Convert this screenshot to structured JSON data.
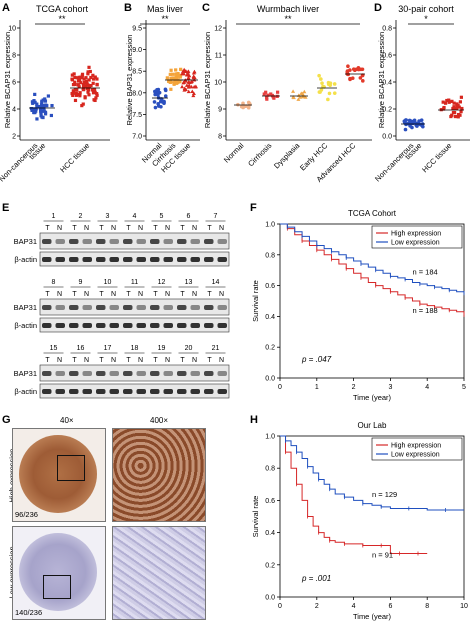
{
  "panels": {
    "A": {
      "letter": "A",
      "title": "TCGA cohort",
      "sig": "**",
      "ylabel": "Relative BCAP31 expression",
      "yticks": [
        "2",
        "4",
        "6",
        "8",
        "10"
      ],
      "groups": [
        {
          "label": "Non-cancerous",
          "label2": "tissue",
          "color": "#2a4fbf"
        },
        {
          "label": "HCC tissue",
          "label2": "",
          "color": "#d7261e"
        }
      ]
    },
    "B": {
      "letter": "B",
      "title": "Mas liver",
      "sig": "**",
      "ylabel": "Relative BAP31 expression",
      "yticks": [
        "7.0",
        "7.5",
        "8.0",
        "8.5",
        "9.0",
        "9.5"
      ],
      "groups": [
        {
          "label": "Normal",
          "color": "#2a4fbf"
        },
        {
          "label": "Cirrhosis",
          "color": "#f4a43a"
        },
        {
          "label": "HCC tissue",
          "color": "#d7261e"
        }
      ]
    },
    "C": {
      "letter": "C",
      "title": "Wurmbach liver",
      "sig": "**",
      "ylabel": "Relative BCAP31 expression",
      "yticks": [
        "8",
        "9",
        "10",
        "11",
        "12"
      ],
      "groups": [
        {
          "label": "Normal",
          "color": "#f2b38a"
        },
        {
          "label": "Cirrhosis",
          "color": "#e84040"
        },
        {
          "label": "Dysplasia",
          "color": "#f0a84a"
        },
        {
          "label": "Early HCC",
          "color": "#f4e04a"
        },
        {
          "label": "Advanced HCC",
          "color": "#e23a2a"
        }
      ]
    },
    "D": {
      "letter": "D",
      "title": "30-pair cohort",
      "sig": "*",
      "ylabel": "Relative BCAP31 expression",
      "yticks": [
        "0.0",
        "0.2",
        "0.4",
        "0.6",
        "0.8"
      ],
      "groups": [
        {
          "label": "Non-cancerous",
          "label2": "tissue",
          "color": "#2a4fbf"
        },
        {
          "label": "HCC tissue",
          "label2": "",
          "color": "#d7261e"
        }
      ]
    },
    "E": {
      "letter": "E",
      "protein": "BAP31",
      "control": "β-actin",
      "t": "T",
      "n": "N",
      "rows": [
        [
          "1",
          "2",
          "3",
          "4",
          "5",
          "6",
          "7"
        ],
        [
          "8",
          "9",
          "10",
          "11",
          "12",
          "13",
          "14"
        ],
        [
          "15",
          "16",
          "17",
          "18",
          "19",
          "20",
          "21"
        ]
      ]
    },
    "G": {
      "letter": "G",
      "mag_low": "40×",
      "mag_high": "400×",
      "high_label": "High expression",
      "low_label": "Low expression",
      "high_count": "96/236",
      "low_count": "140/236"
    }
  },
  "chart_data": [
    {
      "type": "line",
      "panel": "F",
      "title": "TCGA Cohort",
      "xlabel": "Time (year)",
      "ylabel": "Survival rate",
      "xlim": [
        0,
        5
      ],
      "ylim": [
        0,
        1.0
      ],
      "xticks": [
        "0",
        "1",
        "2",
        "3",
        "4",
        "5"
      ],
      "yticks": [
        "0.0",
        "0.2",
        "0.4",
        "0.6",
        "0.8",
        "1.0"
      ],
      "legend_position": "top-right",
      "pvalue": "p = .047",
      "series": [
        {
          "name": "High expression",
          "color": "#d62728",
          "n_label": "n = 188",
          "x": [
            0,
            0.2,
            0.4,
            0.6,
            0.8,
            1.0,
            1.2,
            1.4,
            1.6,
            1.8,
            2.0,
            2.2,
            2.4,
            2.6,
            2.8,
            3.0,
            3.2,
            3.4,
            3.6,
            3.8,
            4.0,
            4.2,
            4.4,
            4.6,
            4.8,
            5.0
          ],
          "y": [
            1.0,
            0.97,
            0.93,
            0.89,
            0.86,
            0.83,
            0.8,
            0.77,
            0.74,
            0.71,
            0.68,
            0.65,
            0.62,
            0.6,
            0.58,
            0.56,
            0.54,
            0.52,
            0.5,
            0.48,
            0.47,
            0.46,
            0.45,
            0.44,
            0.43,
            0.41
          ]
        },
        {
          "name": "Low expression",
          "color": "#1f4fbf",
          "n_label": "n = 184",
          "x": [
            0,
            0.2,
            0.4,
            0.6,
            0.8,
            1.0,
            1.2,
            1.4,
            1.6,
            1.8,
            2.0,
            2.2,
            2.4,
            2.6,
            2.8,
            3.0,
            3.2,
            3.4,
            3.6,
            3.8,
            4.0,
            4.2,
            4.4,
            4.6,
            4.8,
            5.0
          ],
          "y": [
            1.0,
            0.98,
            0.95,
            0.92,
            0.89,
            0.86,
            0.84,
            0.82,
            0.8,
            0.78,
            0.76,
            0.74,
            0.72,
            0.7,
            0.68,
            0.66,
            0.65,
            0.64,
            0.62,
            0.61,
            0.6,
            0.59,
            0.58,
            0.57,
            0.56,
            0.55
          ]
        }
      ]
    },
    {
      "type": "line",
      "panel": "H",
      "title": "Our Lab",
      "xlabel": "Time (year)",
      "ylabel": "Survival rate",
      "xlim": [
        0,
        10
      ],
      "ylim": [
        0,
        1.0
      ],
      "xticks": [
        "0",
        "2",
        "4",
        "6",
        "8",
        "10"
      ],
      "yticks": [
        "0.0",
        "0.2",
        "0.4",
        "0.6",
        "0.8",
        "1.0"
      ],
      "legend_position": "top-right",
      "pvalue": "p = .001",
      "series": [
        {
          "name": "High expression",
          "color": "#d62728",
          "n_label": "n = 91",
          "x": [
            0,
            0.3,
            0.6,
            0.9,
            1.2,
            1.5,
            1.8,
            2.1,
            2.4,
            2.7,
            3.0,
            3.5,
            4.0,
            4.5,
            5.0,
            5.5,
            6.0,
            6.5,
            7.0,
            7.5,
            8.0
          ],
          "y": [
            1.0,
            0.9,
            0.8,
            0.7,
            0.6,
            0.5,
            0.44,
            0.4,
            0.37,
            0.35,
            0.34,
            0.33,
            0.33,
            0.32,
            0.32,
            0.32,
            0.27,
            0.27,
            0.27,
            0.27,
            0.27
          ]
        },
        {
          "name": "Low expression",
          "color": "#1f4fbf",
          "n_label": "n = 129",
          "x": [
            0,
            0.3,
            0.6,
            0.9,
            1.2,
            1.5,
            1.8,
            2.1,
            2.4,
            2.7,
            3.0,
            3.5,
            4.0,
            4.5,
            5.0,
            5.5,
            6.0,
            7.0,
            8.0,
            9.0,
            10.0
          ],
          "y": [
            1.0,
            0.97,
            0.94,
            0.9,
            0.86,
            0.81,
            0.77,
            0.73,
            0.7,
            0.67,
            0.64,
            0.62,
            0.6,
            0.58,
            0.57,
            0.56,
            0.55,
            0.55,
            0.54,
            0.54,
            0.54
          ]
        }
      ]
    }
  ]
}
